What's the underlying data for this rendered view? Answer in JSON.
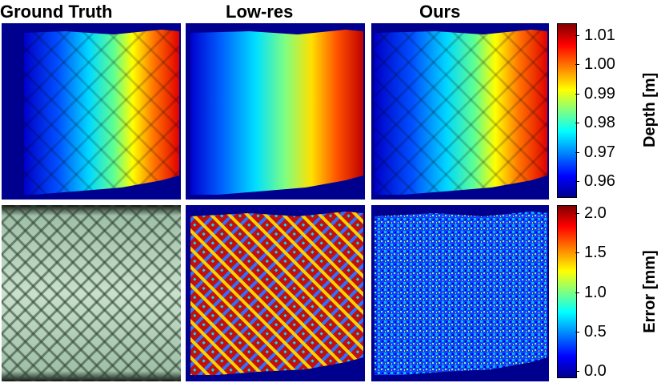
{
  "columns": [
    {
      "id": "gt",
      "title": "Ground Truth"
    },
    {
      "id": "lowres",
      "title": "Low-res"
    },
    {
      "id": "ours",
      "title": "Ours"
    }
  ],
  "depth_colorbar": {
    "label": "Depth [m]",
    "ticks": [
      "1.01",
      "1.00",
      "0.99",
      "0.98",
      "0.97",
      "0.96"
    ],
    "colormap": "jet"
  },
  "error_colorbar": {
    "label": "Error [mm]",
    "ticks": [
      "2.0",
      "1.5",
      "1.0",
      "0.5",
      "0.0"
    ],
    "colormap": "jet"
  },
  "colors": {
    "background_blue": "#00008f",
    "jet": [
      "#00008f",
      "#0000ff",
      "#0080ff",
      "#00ffff",
      "#80ff80",
      "#ffff00",
      "#ff8000",
      "#ff0000",
      "#800000"
    ]
  }
}
